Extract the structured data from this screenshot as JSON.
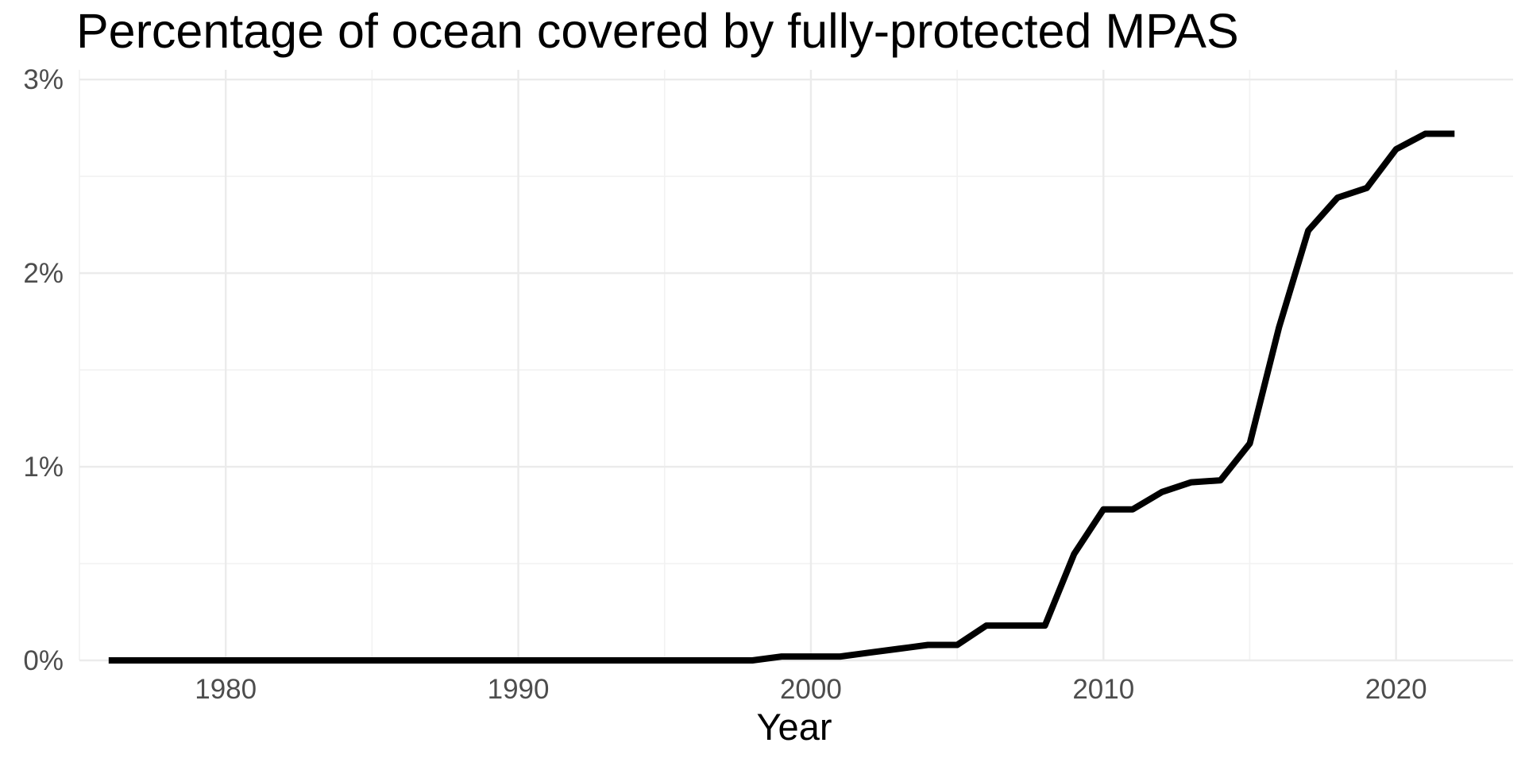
{
  "chart_data": {
    "type": "line",
    "title": "Percentage of ocean covered by fully-protected MPAS",
    "xlabel": "Year",
    "ylabel": "",
    "xlim": [
      1975,
      2024
    ],
    "ylim": [
      0,
      3.05
    ],
    "x_ticks": [
      1980,
      1990,
      2000,
      2010,
      2020
    ],
    "x_tick_labels": [
      "1980",
      "1990",
      "2000",
      "2010",
      "2020"
    ],
    "y_ticks": [
      0,
      1,
      2,
      3
    ],
    "y_tick_labels": [
      "0%",
      "1%",
      "2%",
      "3%"
    ],
    "grid": true,
    "legend": "none",
    "line_color": "#000000",
    "grid_color": "#ebebeb",
    "series": [
      {
        "x": [
          1976,
          1980,
          1985,
          1990,
          1995,
          1998,
          1999,
          2000,
          2001,
          2002,
          2003,
          2004,
          2005,
          2006,
          2007,
          2008,
          2009,
          2010,
          2011,
          2012,
          2013,
          2014,
          2015,
          2016,
          2017,
          2018,
          2019,
          2020,
          2021,
          2022
        ],
        "values": [
          0.0,
          0.0,
          0.0,
          0.0,
          0.0,
          0.0,
          0.02,
          0.02,
          0.02,
          0.04,
          0.06,
          0.08,
          0.08,
          0.18,
          0.18,
          0.18,
          0.55,
          0.78,
          0.78,
          0.87,
          0.92,
          0.93,
          1.12,
          1.72,
          2.22,
          2.39,
          2.44,
          2.64,
          2.72,
          2.72
        ]
      }
    ]
  }
}
